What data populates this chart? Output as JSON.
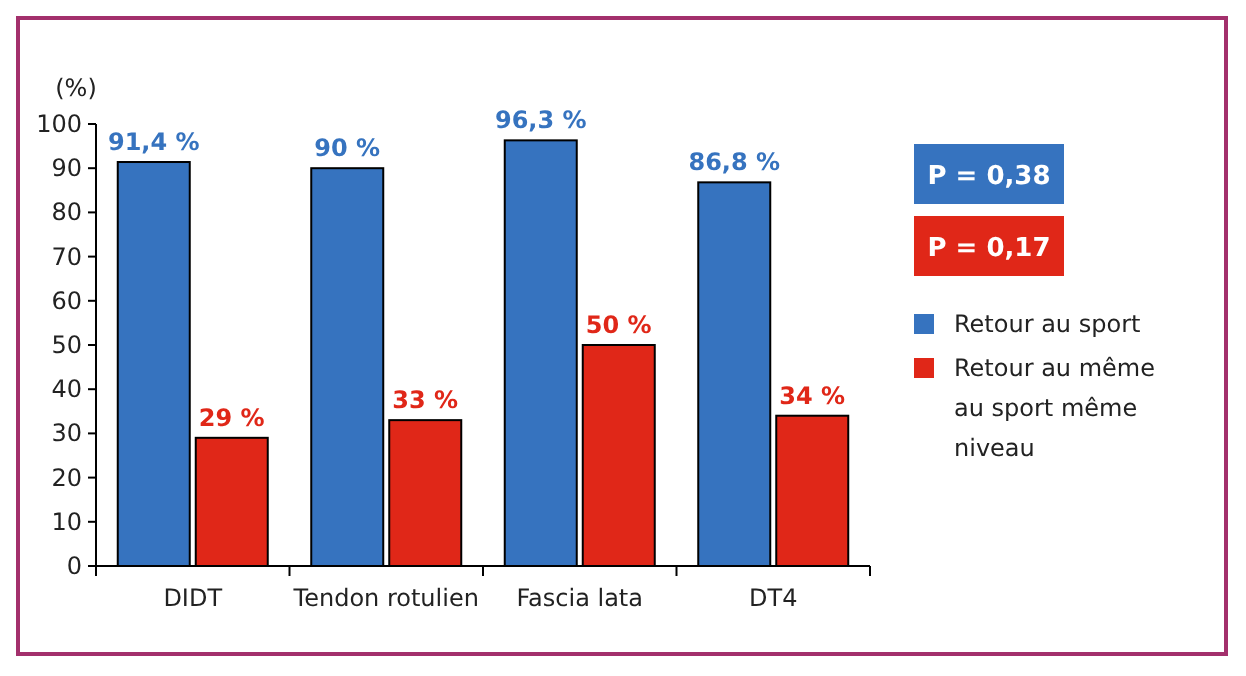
{
  "chart_data": {
    "type": "bar",
    "ylabel": "(%)",
    "categories": [
      "DIDT",
      "Tendon rotulien",
      "Fascia lata",
      "DT4"
    ],
    "series": [
      {
        "name": "Retour au sport",
        "color": "#3673bf",
        "values": [
          91.4,
          90,
          96.3,
          86.8
        ],
        "value_labels": [
          "91,4 %",
          "90 %",
          "96,3 %",
          "86,8 %"
        ]
      },
      {
        "name": "Retour au même au sport même niveau",
        "color": "#e02718",
        "values": [
          29,
          33,
          50,
          34
        ],
        "value_labels": [
          "29 %",
          "33 %",
          "50 %",
          "34 %"
        ]
      }
    ],
    "annotations": [
      "P = 0,38",
      "P = 0,17"
    ],
    "ylim": [
      0,
      100
    ],
    "yticks": [
      0,
      10,
      20,
      30,
      40,
      50,
      60,
      70,
      80,
      90,
      100
    ],
    "grid": false,
    "legend": "right"
  }
}
